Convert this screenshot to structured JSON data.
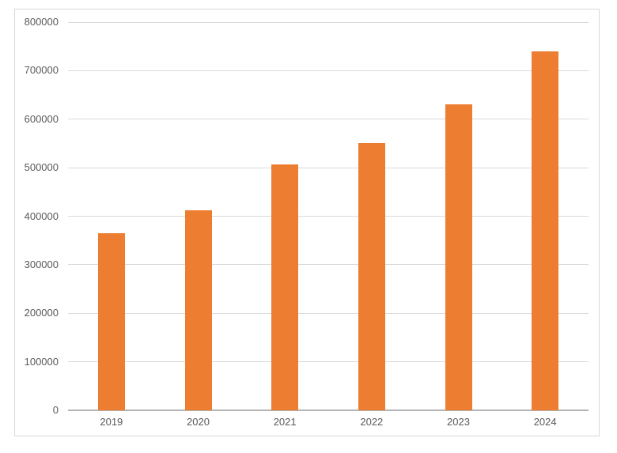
{
  "chart_data": {
    "type": "bar",
    "title": "",
    "xlabel": "",
    "ylabel": "",
    "categories": [
      "2019",
      "2020",
      "2021",
      "2022",
      "2023",
      "2024"
    ],
    "values": [
      365000,
      412000,
      507000,
      551000,
      631000,
      740000
    ],
    "ylim": [
      0,
      800000
    ],
    "ytick_step": 100000,
    "ytick_labels": [
      "0",
      "100000",
      "200000",
      "300000",
      "400000",
      "500000",
      "600000",
      "700000",
      "800000"
    ],
    "grid": true,
    "legend": "none",
    "colors": {
      "bar": "#ED7D31",
      "gridline": "#DADADA",
      "axis_line": "#B3B3B3",
      "tick_label": "#595959",
      "frame_border": "#D9D9D9",
      "background": "#FFFFFF"
    }
  }
}
